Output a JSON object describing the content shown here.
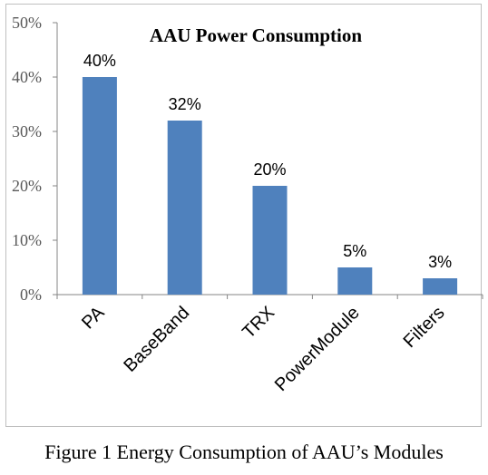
{
  "caption": "Figure 1 Energy Consumption of AAU’s Modules",
  "chart_data": {
    "type": "bar",
    "title": "AAU Power Consumption",
    "categories": [
      "PA",
      "BaseBand",
      "TRX",
      "PowerModule",
      "Filters"
    ],
    "values": [
      40,
      32,
      20,
      5,
      3
    ],
    "data_labels": [
      "40%",
      "32%",
      "20%",
      "5%",
      "3%"
    ],
    "y_ticks": [
      {
        "value": 0,
        "label": "0%"
      },
      {
        "value": 10,
        "label": "10%"
      },
      {
        "value": 20,
        "label": "20%"
      },
      {
        "value": 30,
        "label": "30%"
      },
      {
        "value": 40,
        "label": "40%"
      },
      {
        "value": 50,
        "label": "50%"
      }
    ],
    "xlabel": "",
    "ylabel": "",
    "ylim": [
      0,
      50
    ],
    "grid": false,
    "legend": "none",
    "bar_color": "#4f81bd",
    "axis_color": "#868686",
    "frame_color": "#bfbfbf"
  }
}
